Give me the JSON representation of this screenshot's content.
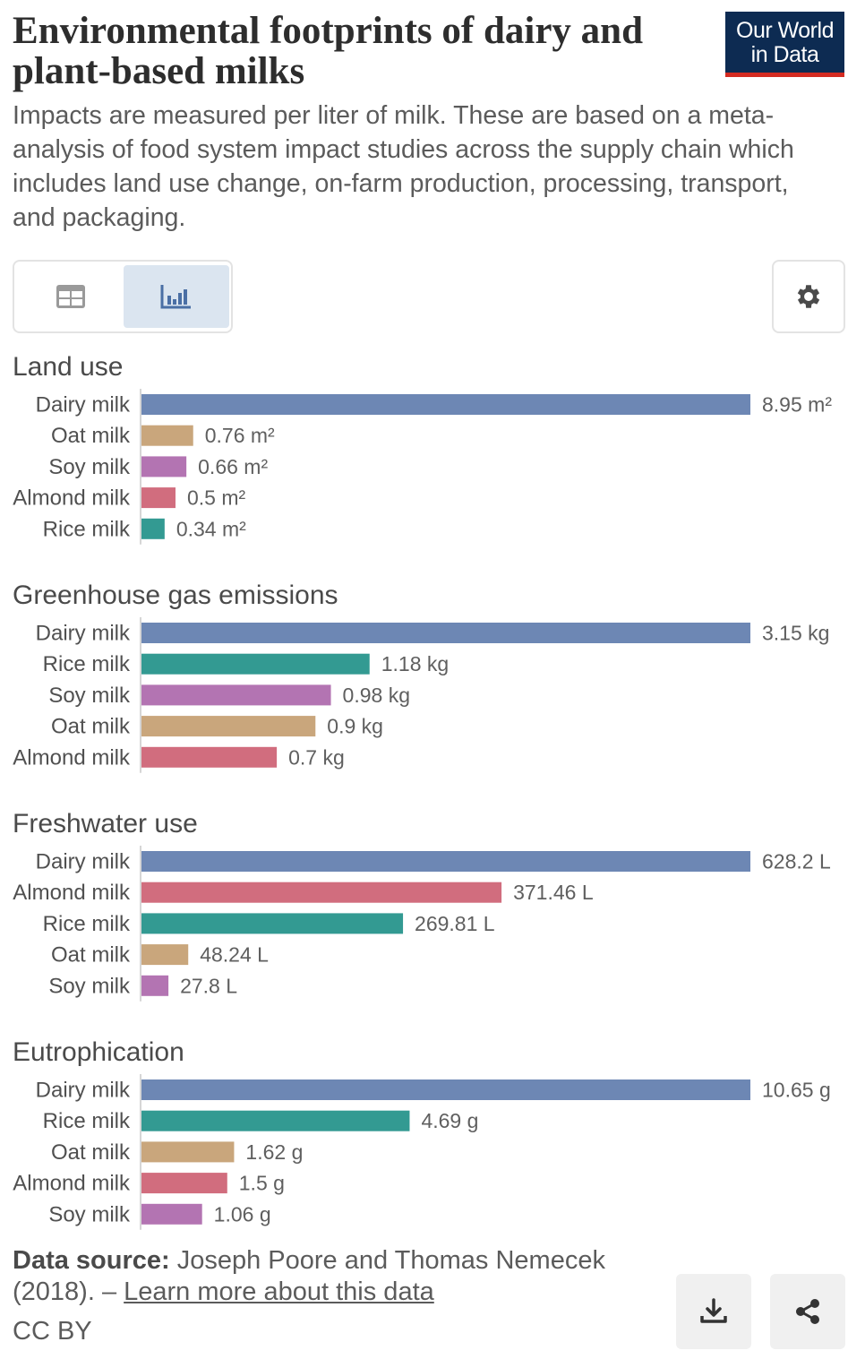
{
  "header": {
    "title": "Environmental footprints of dairy and plant-based milks",
    "subtitle": "Impacts are measured per liter of milk. These are based on a meta-analysis of food system impact studies across the supply chain which includes land use change, on-farm production, processing, transport, and packaging.",
    "logo_line1": "Our World",
    "logo_line2": "in Data"
  },
  "controls": {
    "table_icon": "table-icon",
    "chart_icon": "bar-chart-icon",
    "settings_icon": "gear-icon",
    "active_view": "chart"
  },
  "colors": {
    "Dairy milk": "#6d87b4",
    "Oat milk": "#c9a67c",
    "Soy milk": "#b374b2",
    "Almond milk": "#d16d7e",
    "Rice milk": "#339a92"
  },
  "chart_data": [
    {
      "type": "bar",
      "orientation": "horizontal",
      "title": "Land use",
      "unit": "m²",
      "categories": [
        "Dairy milk",
        "Oat milk",
        "Soy milk",
        "Almond milk",
        "Rice milk"
      ],
      "values": [
        8.95,
        0.76,
        0.66,
        0.5,
        0.34
      ],
      "value_labels": [
        "8.95 m²",
        "0.76 m²",
        "0.66 m²",
        "0.5 m²",
        "0.34 m²"
      ]
    },
    {
      "type": "bar",
      "orientation": "horizontal",
      "title": "Greenhouse gas emissions",
      "unit": "kg",
      "categories": [
        "Dairy milk",
        "Rice milk",
        "Soy milk",
        "Oat milk",
        "Almond milk"
      ],
      "values": [
        3.15,
        1.18,
        0.98,
        0.9,
        0.7
      ],
      "value_labels": [
        "3.15 kg",
        "1.18 kg",
        "0.98 kg",
        "0.9 kg",
        "0.7 kg"
      ]
    },
    {
      "type": "bar",
      "orientation": "horizontal",
      "title": "Freshwater use",
      "unit": "L",
      "categories": [
        "Dairy milk",
        "Almond milk",
        "Rice milk",
        "Oat milk",
        "Soy milk"
      ],
      "values": [
        628.2,
        371.46,
        269.81,
        48.24,
        27.8
      ],
      "value_labels": [
        "628.2 L",
        "371.46 L",
        "269.81 L",
        "48.24 L",
        "27.8 L"
      ]
    },
    {
      "type": "bar",
      "orientation": "horizontal",
      "title": "Eutrophication",
      "unit": "g",
      "categories": [
        "Dairy milk",
        "Rice milk",
        "Oat milk",
        "Almond milk",
        "Soy milk"
      ],
      "values": [
        10.65,
        4.69,
        1.62,
        1.5,
        1.06
      ],
      "value_labels": [
        "10.65 g",
        "4.69 g",
        "1.62 g",
        "1.5 g",
        "1.06 g"
      ]
    }
  ],
  "footer": {
    "source_label": "Data source:",
    "source_text": " Joseph Poore and Thomas Nemecek (2018). – ",
    "learn_more": "Learn more about this data",
    "license": "CC BY",
    "download_icon": "download-icon",
    "share_icon": "share-icon"
  }
}
